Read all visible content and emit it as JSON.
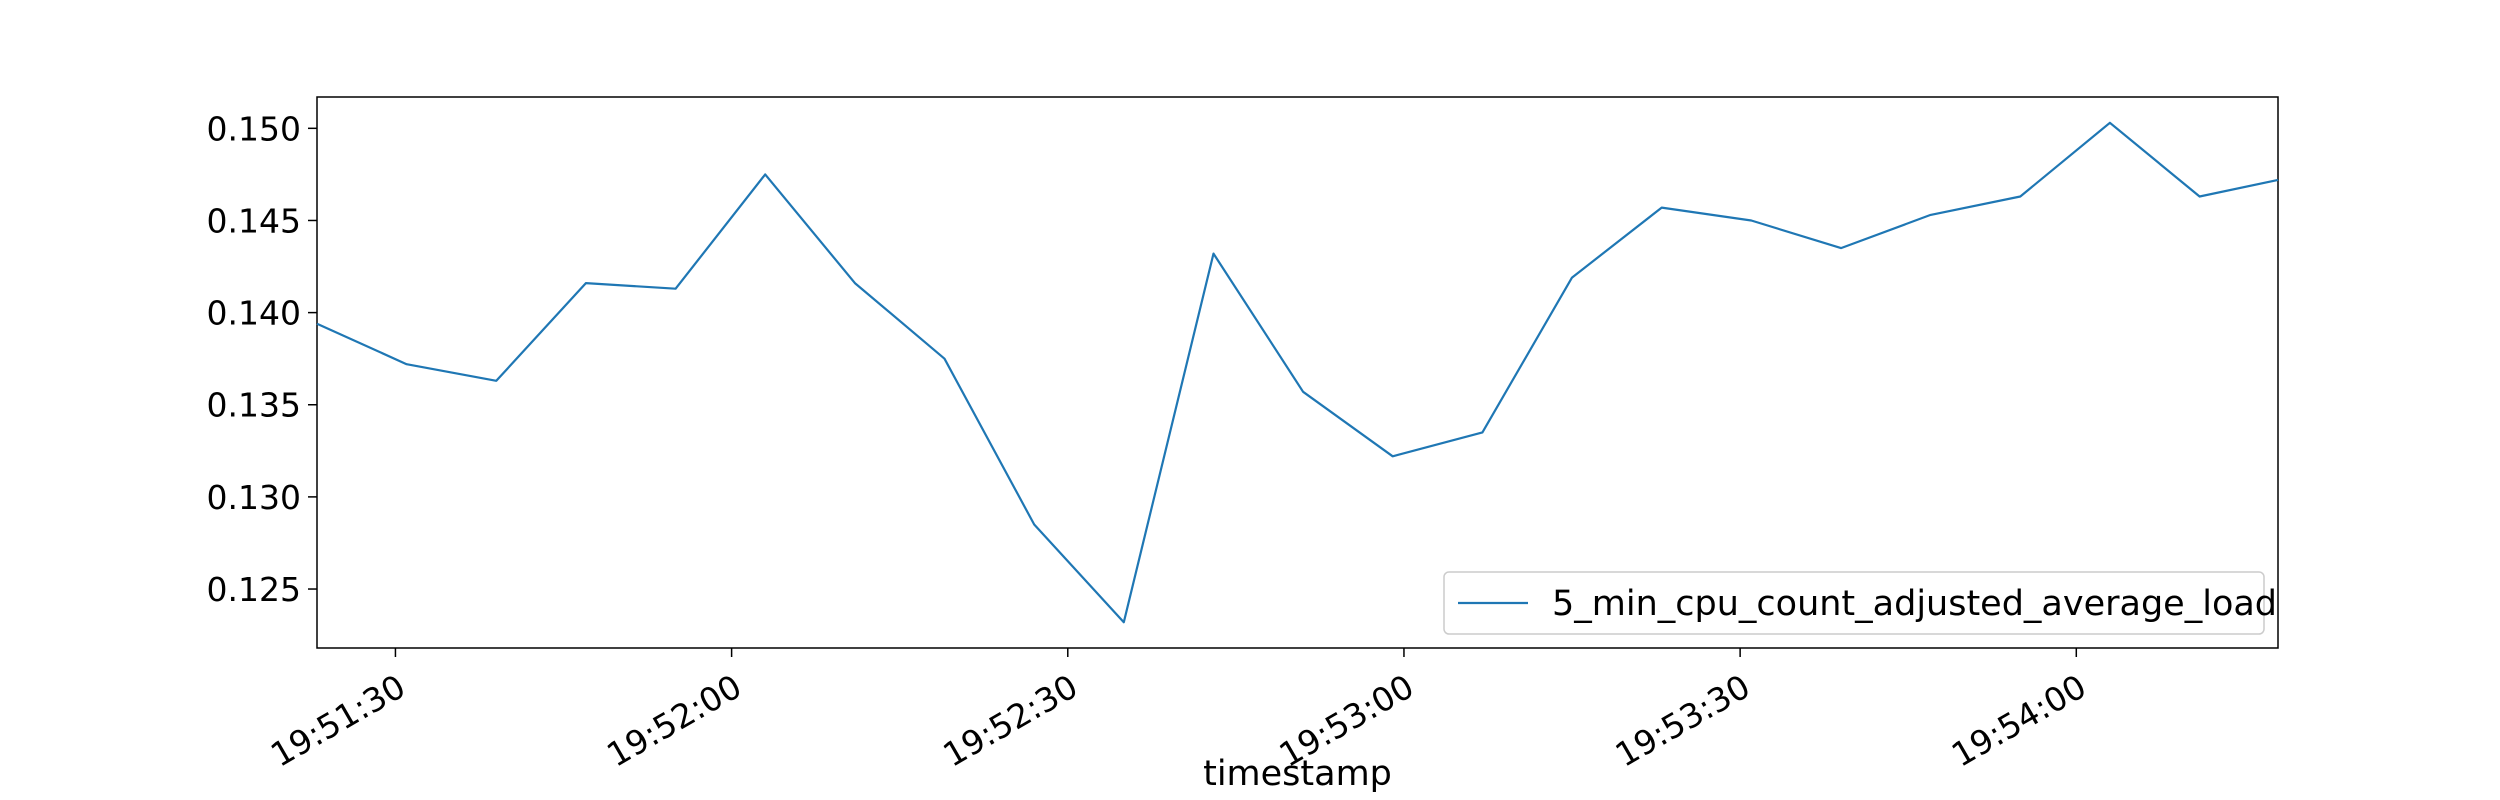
{
  "chart_data": {
    "type": "line",
    "title": "",
    "xlabel": "timestamp",
    "ylabel": "",
    "x_range": [
      "19:51:23",
      "19:54:18"
    ],
    "ylim": [
      0.1218,
      0.1517
    ],
    "grid": false,
    "legend_position": "bottom-right",
    "x_ticks": [
      "19:51:30",
      "19:52:00",
      "19:52:30",
      "19:53:00",
      "19:53:30",
      "19:54:00"
    ],
    "y_ticks": [
      "0.125",
      "0.130",
      "0.135",
      "0.140",
      "0.145",
      "0.150"
    ],
    "series": [
      {
        "name": "5_min_cpu_count_adjusted_average_load",
        "color": "#1f77b4",
        "x": [
          "19:51:23",
          "19:51:31",
          "19:51:39",
          "19:51:47",
          "19:51:55",
          "19:52:03",
          "19:52:11",
          "19:52:19",
          "19:52:27",
          "19:52:35",
          "19:52:43",
          "19:52:51",
          "19:52:59",
          "19:53:07",
          "19:53:15",
          "19:53:23",
          "19:53:31",
          "19:53:39",
          "19:53:47",
          "19:53:55",
          "19:54:03",
          "19:54:11",
          "19:54:18"
        ],
        "values": [
          0.1394,
          0.1372,
          0.1363,
          0.1416,
          0.1413,
          0.1475,
          0.1416,
          0.1375,
          0.1285,
          0.1232,
          0.1432,
          0.1357,
          0.1322,
          0.1335,
          0.1419,
          0.1457,
          0.145,
          0.1435,
          0.1453,
          0.1463,
          0.1503,
          0.1463,
          0.1472
        ]
      }
    ]
  }
}
